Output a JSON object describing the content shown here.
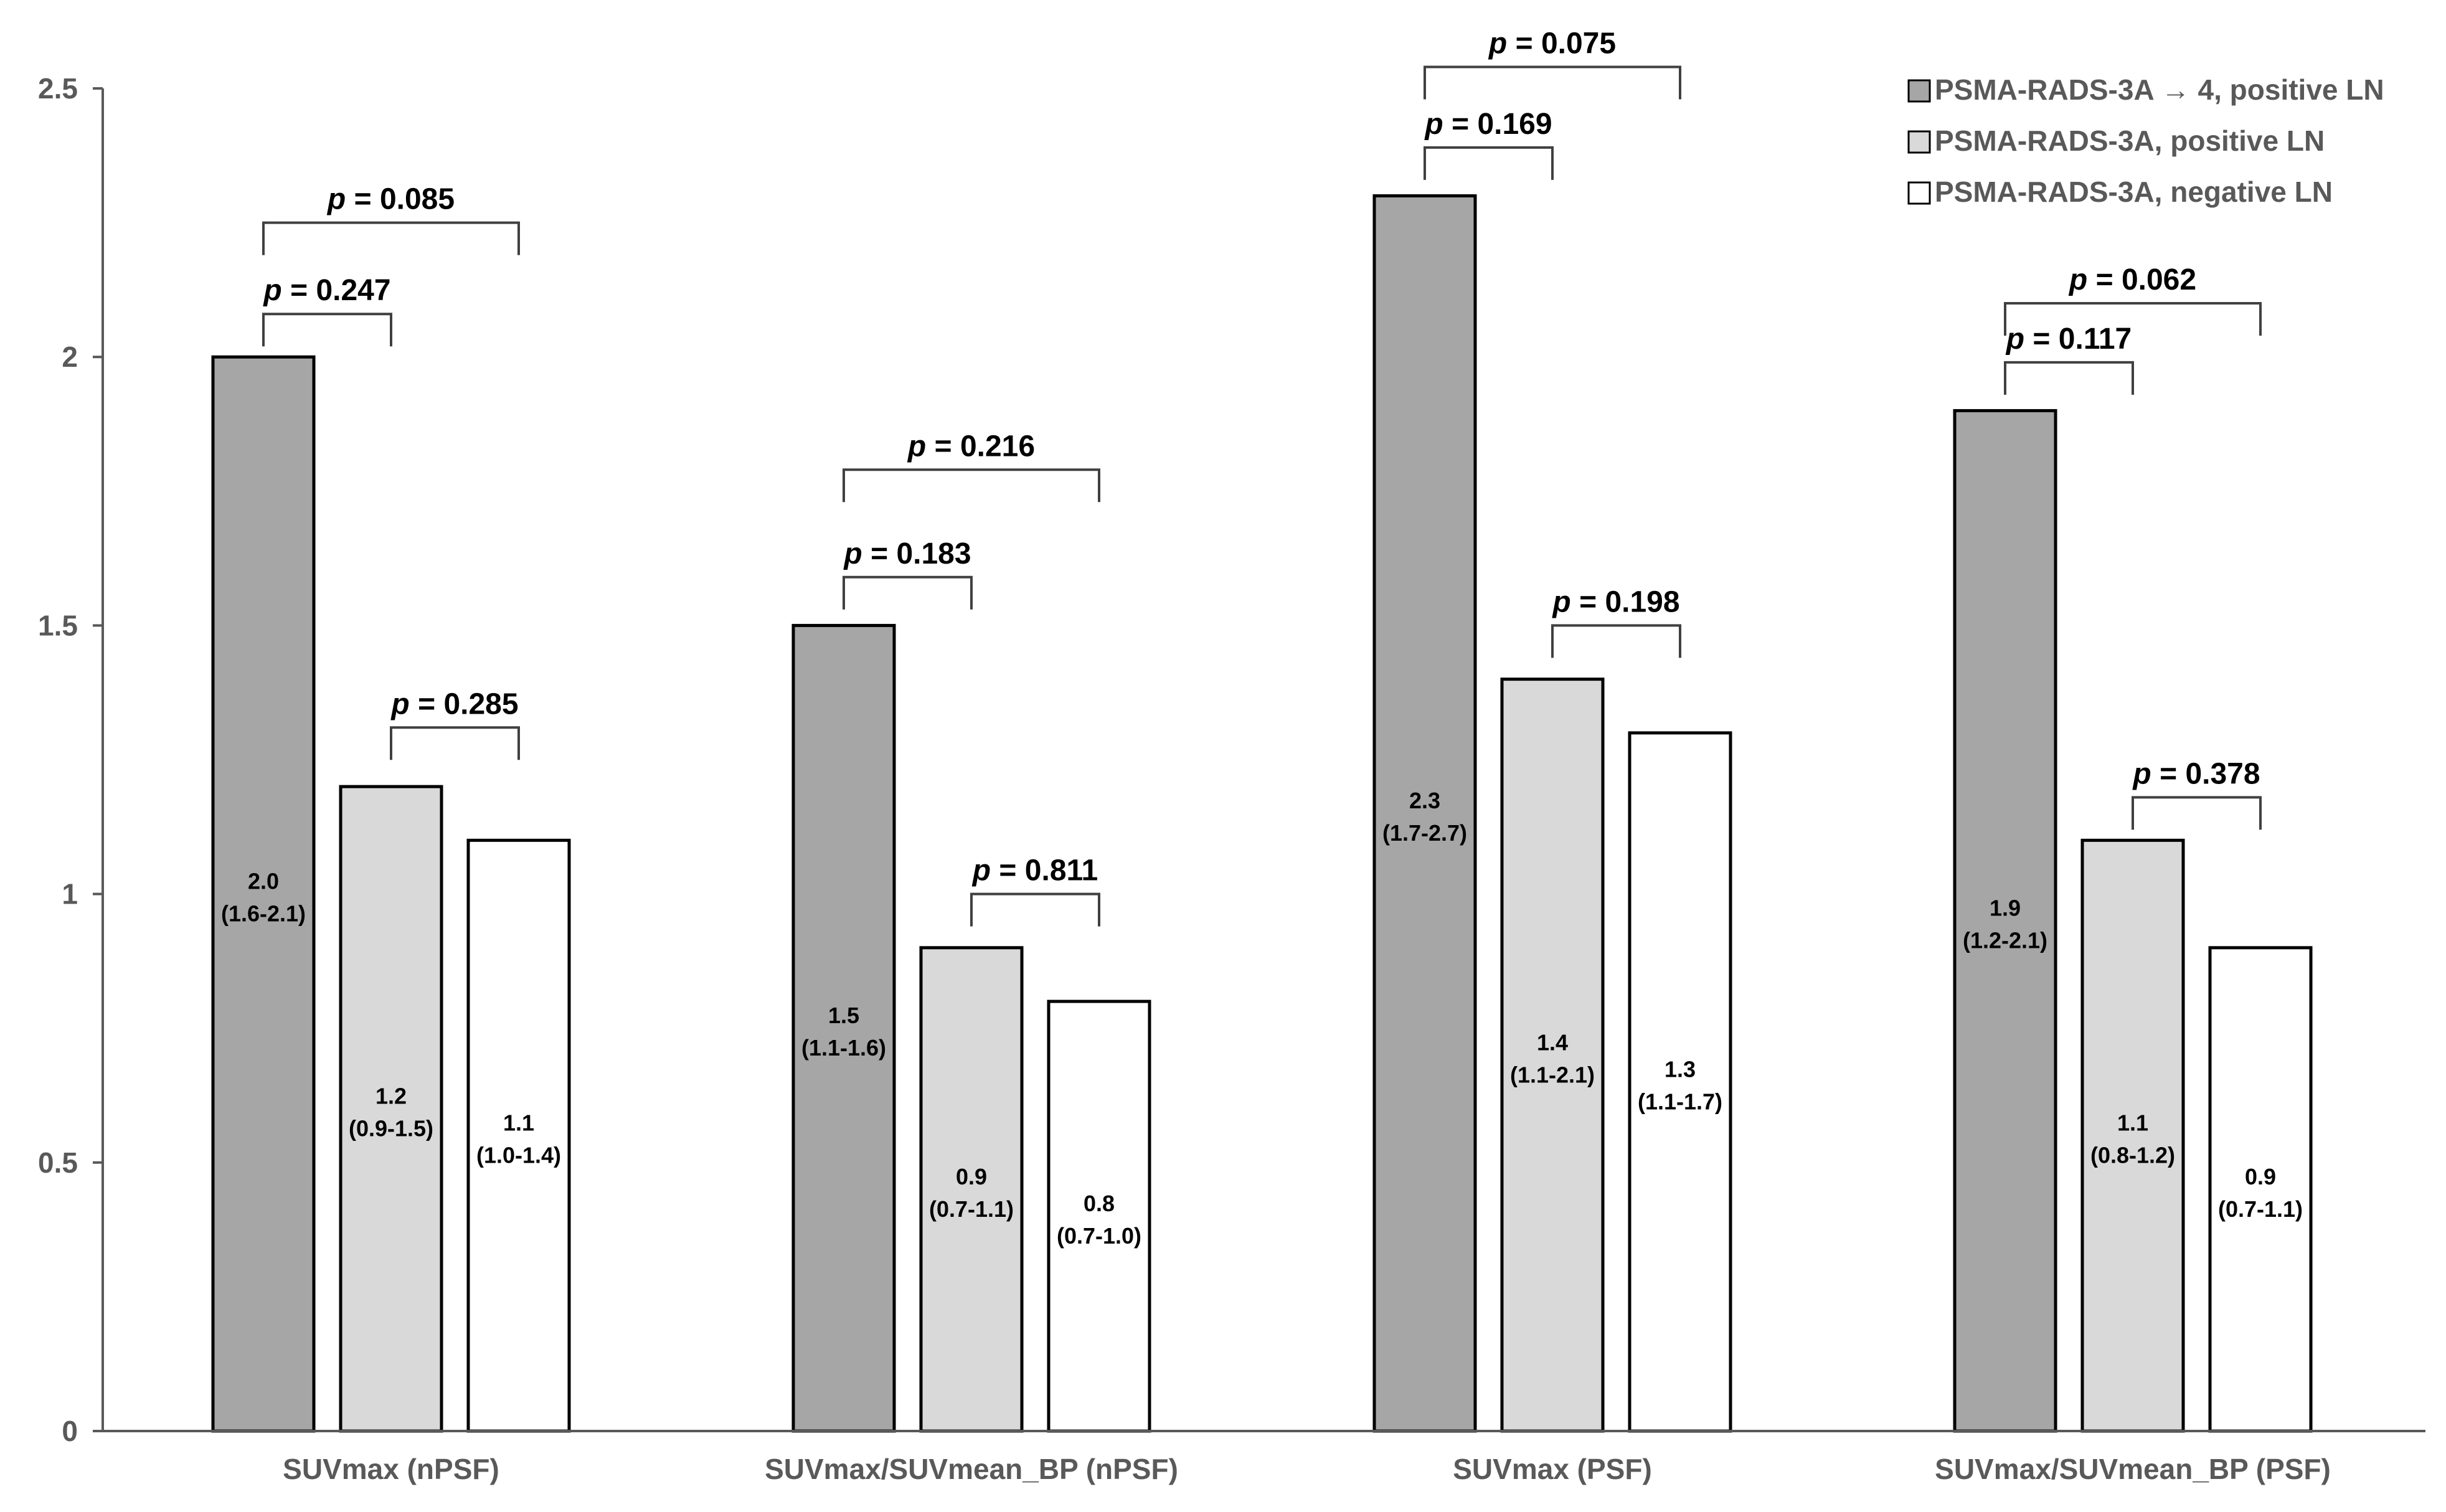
{
  "chart_data": {
    "type": "bar",
    "title": "",
    "xlabel": "",
    "ylabel": "",
    "ylim": [
      0,
      2.5
    ],
    "yticks": [
      "0",
      "0.5",
      "1",
      "1.5",
      "2",
      "2.5"
    ],
    "grid": false,
    "legend_position": "top-right",
    "categories": [
      "SUVmax (nPSF)",
      "SUVmax/SUVmean_BP (nPSF)",
      "SUVmax (PSF)",
      "SUVmax/SUVmean_BP (PSF)"
    ],
    "series": [
      {
        "name": "PSMA-RADS-3A → 4, positive LN",
        "color": "#a6a6a6",
        "values": [
          2.0,
          1.5,
          2.3,
          1.9
        ],
        "labels": [
          [
            "2.0",
            "(1.6-2.1)"
          ],
          [
            "1.5",
            "(1.1-1.6)"
          ],
          [
            "2.3",
            "(1.7-2.7)"
          ],
          [
            "1.9",
            "(1.2-2.1)"
          ]
        ]
      },
      {
        "name": "PSMA-RADS-3A, positive LN",
        "color": "#d9d9d9",
        "values": [
          1.2,
          0.9,
          1.4,
          1.1
        ],
        "labels": [
          [
            "1.2",
            "(0.9-1.5)"
          ],
          [
            "0.9",
            "(0.7-1.1)"
          ],
          [
            "1.4",
            "(1.1-2.1)"
          ],
          [
            "1.1",
            "(0.8-1.2)"
          ]
        ]
      },
      {
        "name": "PSMA-RADS-3A, negative LN",
        "color": "#ffffff",
        "values": [
          1.1,
          0.8,
          1.3,
          0.9
        ],
        "labels": [
          [
            "1.1",
            "(1.0-1.4)"
          ],
          [
            "0.8",
            "(0.7-1.0)"
          ],
          [
            "1.3",
            "(1.1-1.7)"
          ],
          [
            "0.9",
            "(0.7-1.1)"
          ]
        ]
      }
    ],
    "comparisons": [
      {
        "group": 0,
        "from": 0,
        "to": 1,
        "level": 2.08,
        "p_prefix": "p",
        "p_text": " = 0.247"
      },
      {
        "group": 0,
        "from": 0,
        "to": 2,
        "level": 2.25,
        "p_prefix": "p",
        "p_text": " = 0.085"
      },
      {
        "group": 0,
        "from": 1,
        "to": 2,
        "level": 1.31,
        "p_prefix": "p",
        "p_text": " = 0.285"
      },
      {
        "group": 1,
        "from": 0,
        "to": 1,
        "level": 1.59,
        "p_prefix": "p",
        "p_text": " = 0.183"
      },
      {
        "group": 1,
        "from": 0,
        "to": 2,
        "level": 1.79,
        "p_prefix": "p",
        "p_text": " = 0.216"
      },
      {
        "group": 1,
        "from": 1,
        "to": 2,
        "level": 1.0,
        "p_prefix": "p",
        "p_text": " = 0.811"
      },
      {
        "group": 2,
        "from": 0,
        "to": 1,
        "level": 2.39,
        "p_prefix": "p",
        "p_text": " = 0.169"
      },
      {
        "group": 2,
        "from": 0,
        "to": 2,
        "level": 2.54,
        "p_prefix": "p",
        "p_text": " = 0.075"
      },
      {
        "group": 2,
        "from": 1,
        "to": 2,
        "level": 1.5,
        "p_prefix": "p",
        "p_text": " = 0.198"
      },
      {
        "group": 3,
        "from": 0,
        "to": 1,
        "level": 1.99,
        "p_prefix": "p",
        "p_text": " = 0.117"
      },
      {
        "group": 3,
        "from": 0,
        "to": 2,
        "level": 2.1,
        "p_prefix": "p",
        "p_text": " = 0.062"
      },
      {
        "group": 3,
        "from": 1,
        "to": 2,
        "level": 1.18,
        "p_prefix": "p",
        "p_text": " = 0.378"
      }
    ]
  }
}
